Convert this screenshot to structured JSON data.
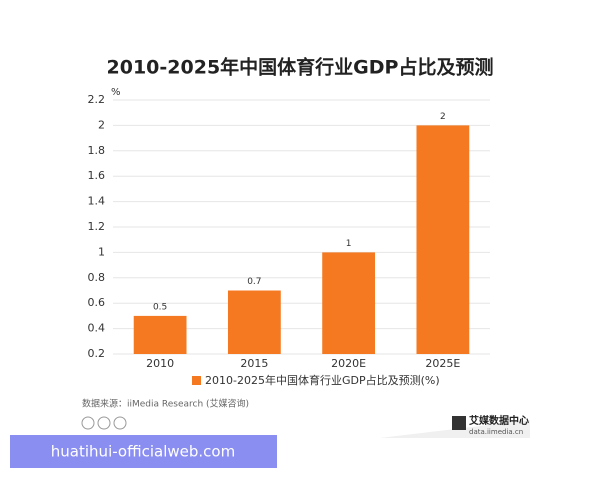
{
  "chart_data": {
    "type": "bar",
    "title": "2010-2025年中国体育行业GDP占比及预测",
    "y_label": "%",
    "categories": [
      "2010",
      "2015",
      "2020E",
      "2025E"
    ],
    "series": [
      {
        "name": "2010-2025年中国体育行业GDP占比及预测(%)",
        "color": "#f47920",
        "values": [
          0.5,
          0.7,
          1,
          2
        ]
      }
    ],
    "ylim": [
      0.2,
      2.2
    ],
    "yticks": [
      0.2,
      0.4,
      0.6,
      0.8,
      1,
      1.2,
      1.4,
      1.6,
      1.8,
      2,
      2.2
    ],
    "grid": true
  },
  "source": "数据来源：iiMedia Research (艾媒咨询)",
  "logo": {
    "name": "艾媒数据中心",
    "url": "data.iimedia.cn"
  },
  "watermark": "huatihui-officialweb.com"
}
